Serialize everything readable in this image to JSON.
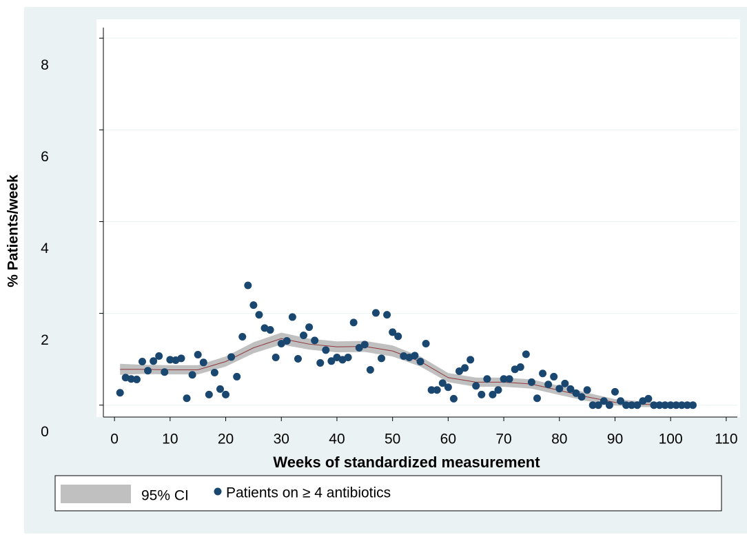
{
  "chart_data": {
    "type": "scatter",
    "xlabel": "Weeks of standardized measurement",
    "ylabel": "% Patients/week",
    "xlim": [
      -2,
      112
    ],
    "ylim": [
      -0.26,
      8.23
    ],
    "xticks": [
      0,
      10,
      20,
      30,
      40,
      50,
      60,
      70,
      80,
      90,
      100,
      110
    ],
    "yticks": [
      0,
      2,
      4,
      6,
      8
    ],
    "grid": true,
    "x": [
      1,
      2,
      3,
      4,
      5,
      6,
      7,
      8,
      9,
      10,
      11,
      12,
      13,
      14,
      15,
      16,
      17,
      18,
      19,
      20,
      21,
      22,
      23,
      24,
      25,
      26,
      27,
      28,
      29,
      30,
      31,
      32,
      33,
      34,
      35,
      36,
      37,
      38,
      39,
      40,
      41,
      42,
      43,
      44,
      45,
      46,
      47,
      48,
      49,
      50,
      51,
      52,
      53,
      54,
      55,
      56,
      57,
      58,
      59,
      60,
      61,
      62,
      63,
      64,
      65,
      66,
      67,
      68,
      69,
      70,
      71,
      72,
      73,
      74,
      75,
      76,
      77,
      78,
      79,
      80,
      81,
      82,
      83,
      84,
      85,
      86,
      87,
      88,
      89,
      90,
      91,
      92,
      93,
      94,
      95,
      96,
      97,
      98,
      99,
      100,
      101,
      102,
      103,
      104
    ],
    "series": [
      {
        "name": "Patients on ≥ 4 antibiotics",
        "color": "#1a476f",
        "values": [
          0.27,
          0.6,
          0.57,
          0.56,
          0.95,
          0.75,
          0.96,
          1.07,
          0.72,
          0.99,
          0.98,
          1.02,
          0.15,
          0.66,
          1.1,
          0.93,
          0.23,
          0.71,
          0.35,
          0.23,
          1.05,
          0.62,
          1.49,
          2.61,
          2.18,
          1.97,
          1.68,
          1.64,
          1.04,
          1.34,
          1.4,
          1.92,
          1.01,
          1.52,
          1.7,
          1.41,
          0.92,
          1.2,
          0.96,
          1.04,
          0.99,
          1.04,
          1.8,
          1.25,
          1.32,
          0.77,
          2.01,
          1.02,
          1.97,
          1.59,
          1.5,
          1.07,
          1.04,
          1.08,
          0.95,
          1.34,
          0.33,
          0.33,
          0.48,
          0.39,
          0.14,
          0.74,
          0.81,
          0.99,
          0.42,
          0.23,
          0.57,
          0.23,
          0.33,
          0.57,
          0.57,
          0.78,
          0.83,
          1.11,
          0.5,
          0.15,
          0.69,
          0.45,
          0.62,
          0.36,
          0.47,
          0.35,
          0.26,
          0.18,
          0.33,
          0,
          0,
          0.09,
          0,
          0.29,
          0.09,
          0,
          0,
          0,
          0.09,
          0.14,
          0,
          0,
          0,
          0,
          0,
          0,
          0,
          0
        ]
      }
    ],
    "ci": {
      "name": "95% CI",
      "color": "#c0c0c0",
      "x": [
        1,
        5,
        10,
        15,
        20,
        25,
        30,
        35,
        40,
        45,
        50,
        55,
        60,
        65,
        70,
        75,
        80,
        85,
        90,
        95,
        100,
        104
      ],
      "lower": [
        0.66,
        0.68,
        0.67,
        0.67,
        0.84,
        1.13,
        1.32,
        1.21,
        1.15,
        1.16,
        1.06,
        0.84,
        0.5,
        0.4,
        0.4,
        0.36,
        0.22,
        0.09,
        -0.01,
        -0.04,
        -0.05,
        -0.06
      ],
      "upper": [
        0.9,
        0.88,
        0.87,
        0.87,
        1.06,
        1.37,
        1.58,
        1.45,
        1.39,
        1.4,
        1.3,
        1.06,
        0.7,
        0.6,
        0.6,
        0.56,
        0.42,
        0.27,
        0.13,
        0.08,
        0.05,
        0.06
      ]
    },
    "fit": {
      "color": "#90353b",
      "x": [
        1,
        5,
        10,
        15,
        20,
        25,
        30,
        35,
        40,
        45,
        50,
        55,
        60,
        65,
        70,
        75,
        80,
        85,
        90,
        95,
        100,
        104
      ],
      "values": [
        0.78,
        0.78,
        0.77,
        0.77,
        0.95,
        1.25,
        1.45,
        1.33,
        1.27,
        1.28,
        1.18,
        0.95,
        0.6,
        0.5,
        0.5,
        0.46,
        0.32,
        0.18,
        0.06,
        0.02,
        0,
        0
      ]
    }
  }
}
